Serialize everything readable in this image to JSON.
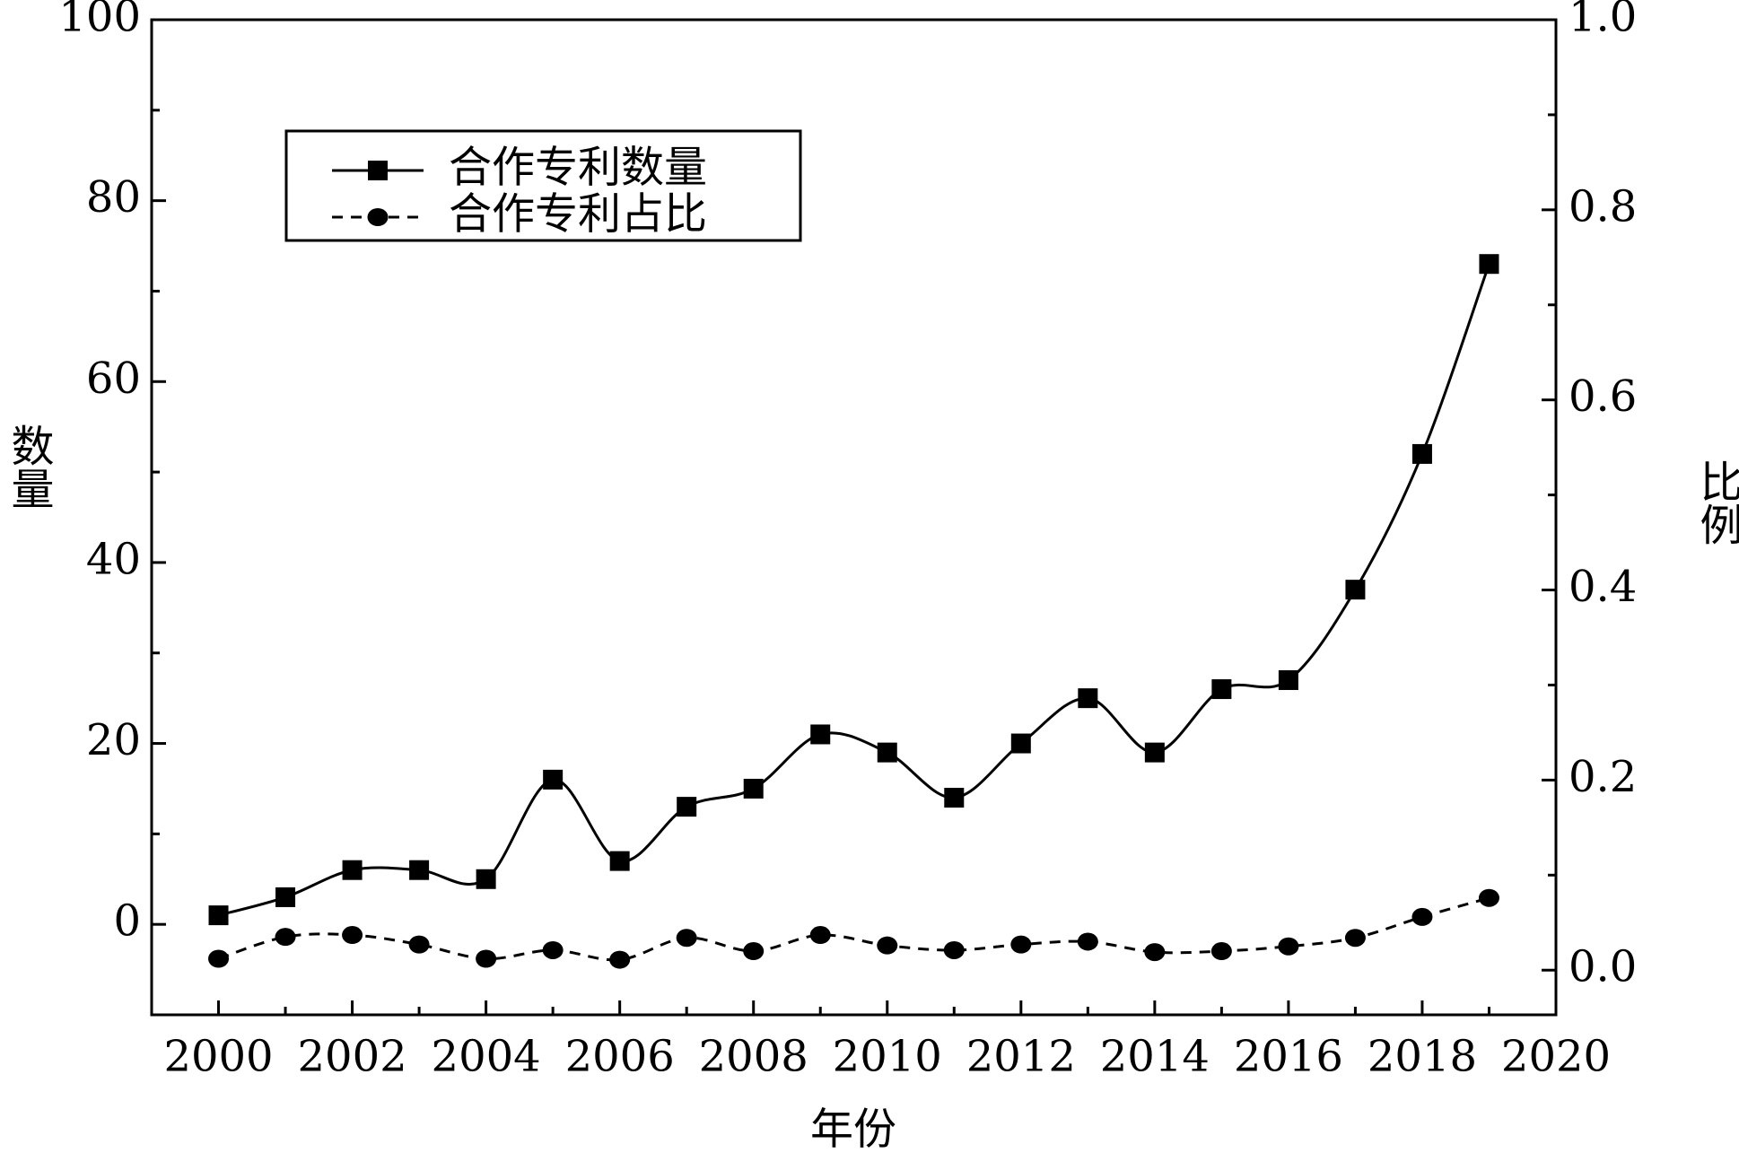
{
  "chart_data": {
    "type": "line",
    "x_label": "年份",
    "y_label": "数量",
    "y2_label": "比例",
    "x": [
      2000,
      2001,
      2002,
      2003,
      2004,
      2005,
      2006,
      2007,
      2008,
      2009,
      2010,
      2011,
      2012,
      2013,
      2014,
      2015,
      2016,
      2017,
      2018,
      2019
    ],
    "series": [
      {
        "name": "合作专利数量",
        "color": "#000000",
        "marker": "square",
        "dash": "solid",
        "values": [
          1,
          3,
          6,
          6,
          5,
          16,
          7,
          13,
          15,
          21,
          19,
          14,
          20,
          25,
          19,
          26,
          27,
          37,
          52,
          73
        ]
      },
      {
        "name": "合作专利占比",
        "color": "#000000",
        "marker": "circle",
        "dash": "dashed",
        "axis": "y2",
        "values": [
          0.012,
          0.035,
          0.037,
          0.027,
          0.012,
          0.021,
          0.011,
          0.034,
          0.02,
          0.037,
          0.026,
          0.021,
          0.027,
          0.03,
          0.019,
          0.02,
          0.025,
          0.034,
          0.056,
          0.076
        ]
      }
    ],
    "xlim": [
      1999,
      2020
    ],
    "xticks": [
      2000,
      2002,
      2004,
      2006,
      2008,
      2010,
      2012,
      2014,
      2016,
      2018,
      2020
    ],
    "ylim": [
      -10,
      100
    ],
    "yticks": [
      0,
      20,
      40,
      60,
      80,
      100
    ],
    "y2lim": [
      -0.047,
      1.0
    ],
    "y2ticks": [
      {
        "value": 0,
        "label": "0.0"
      },
      0.2,
      0.4,
      0.6,
      0.8,
      {
        "value": 1,
        "label": "1.0"
      }
    ],
    "legend": "upper left",
    "grid": false
  }
}
